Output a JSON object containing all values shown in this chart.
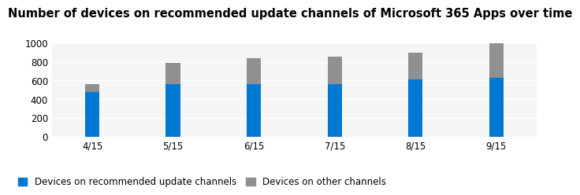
{
  "title": "Number of devices on recommended update channels of Microsoft 365 Apps over time",
  "categories": [
    "4/15",
    "5/15",
    "6/15",
    "7/15",
    "8/15",
    "9/15"
  ],
  "blue_values": [
    480,
    560,
    560,
    560,
    610,
    630
  ],
  "gray_values": [
    80,
    230,
    280,
    300,
    290,
    370
  ],
  "blue_color": "#0078D4",
  "gray_color": "#909090",
  "ylim": [
    0,
    1000
  ],
  "yticks": [
    0,
    200,
    400,
    600,
    800,
    1000
  ],
  "legend_blue": "Devices on recommended update channels",
  "legend_gray": "Devices on other channels",
  "title_fontsize": 10.5,
  "tick_fontsize": 8.5,
  "legend_fontsize": 8.5,
  "background_color": "#ffffff",
  "plot_bg_color": "#f5f5f5",
  "grid_color": "#ffffff",
  "bar_width": 0.18
}
